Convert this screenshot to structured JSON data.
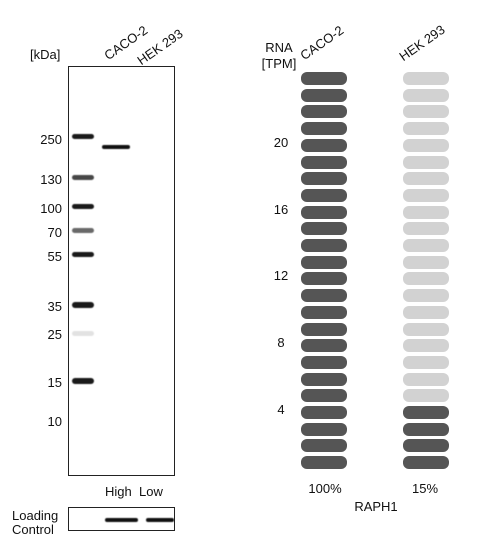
{
  "western_blot": {
    "unit_label": "[kDa]",
    "lanes": [
      "CACO-2",
      "HEK 293"
    ],
    "mw_markers": [
      "250",
      "130",
      "100",
      "70",
      "55",
      "35",
      "25",
      "15",
      "10"
    ],
    "bottom_labels": [
      "High",
      "Low"
    ],
    "loading_control_label": [
      "Loading",
      "Control"
    ]
  },
  "rna": {
    "header": [
      "RNA",
      "[TPM]"
    ],
    "cell_lines": [
      "CACO-2",
      "HEK 293"
    ],
    "scale_labels": [
      "20",
      "16",
      "12",
      "8",
      "4"
    ],
    "percentages": [
      "100%",
      "15%"
    ],
    "gene": "RAPH1",
    "colors": {
      "filled": "#555555",
      "empty": "#d2d2d2"
    },
    "columns": [
      {
        "name": "CACO-2",
        "filled_of_24": 24
      },
      {
        "name": "HEK 293",
        "filled_of_24": 4
      }
    ]
  }
}
